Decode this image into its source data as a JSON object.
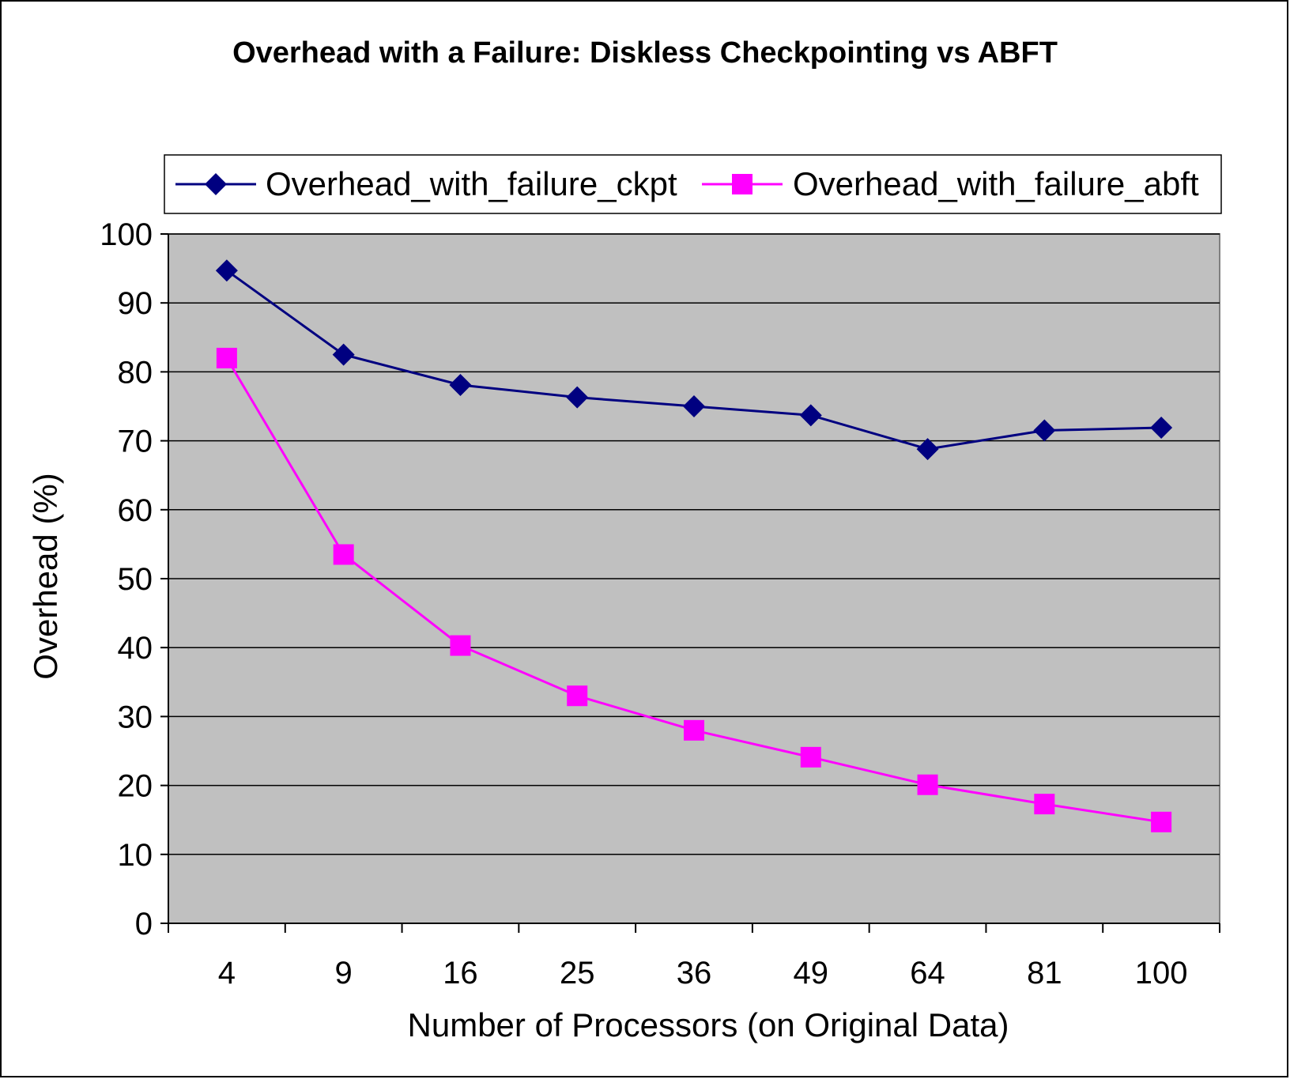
{
  "chart_data": {
    "type": "line",
    "title": "Overhead with a Failure: Diskless Checkpointing vs ABFT",
    "xlabel": "Number of Processors (on Original Data)",
    "ylabel": "Overhead (%)",
    "categories": [
      "4",
      "9",
      "16",
      "25",
      "36",
      "49",
      "64",
      "81",
      "100"
    ],
    "ylim": [
      0,
      100
    ],
    "yticks": [
      0,
      10,
      20,
      30,
      40,
      50,
      60,
      70,
      80,
      90,
      100
    ],
    "grid": true,
    "legend": "top",
    "series": [
      {
        "name": "Overhead_with_failure_ckpt",
        "color": "#000080",
        "marker": "diamond",
        "values": [
          94.7,
          82.5,
          78.1,
          76.3,
          75.0,
          73.7,
          68.8,
          71.5,
          71.9
        ]
      },
      {
        "name": "Overhead_with_failure_abft",
        "color": "#FF00FF",
        "marker": "square",
        "values": [
          82.0,
          53.5,
          40.3,
          33.0,
          28.0,
          24.1,
          20.1,
          17.3,
          14.7
        ]
      }
    ]
  }
}
